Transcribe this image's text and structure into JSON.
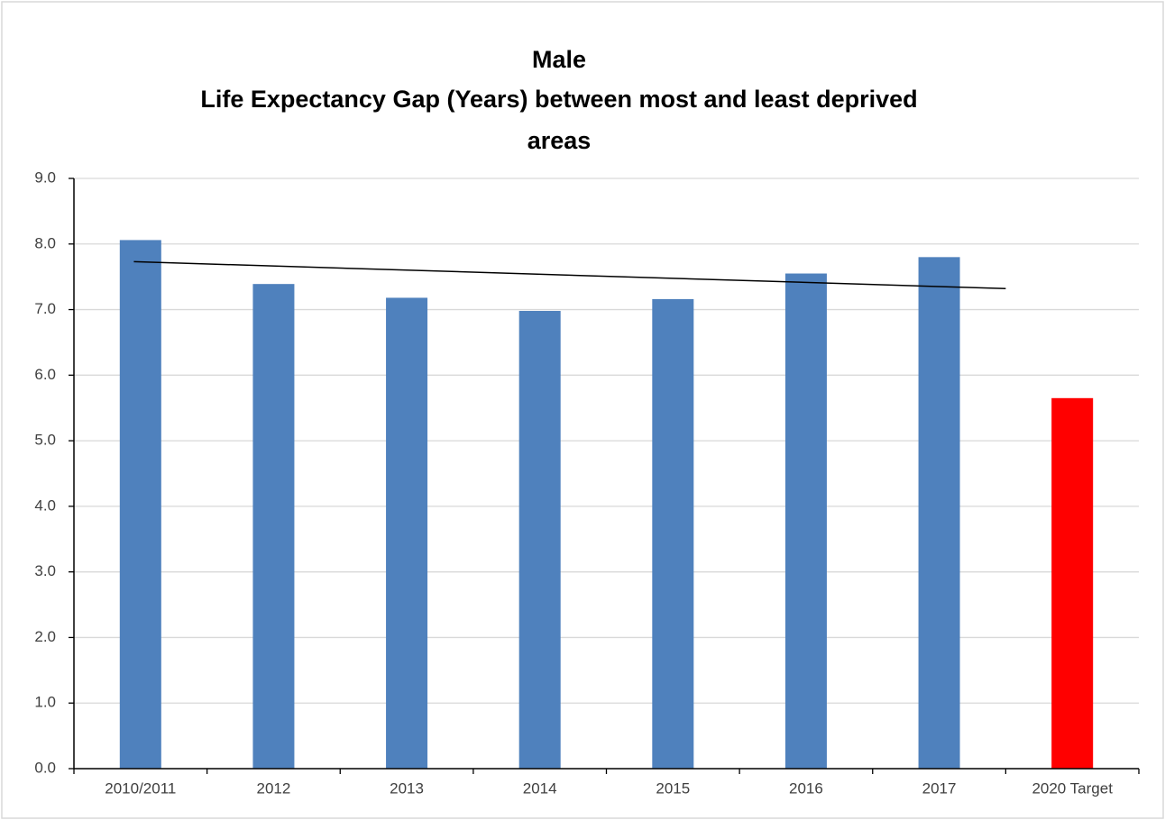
{
  "chart_data": {
    "type": "bar",
    "title": [
      "Male",
      "Life Expectancy Gap (Years) between most and least deprived",
      "areas"
    ],
    "categories": [
      "2010/2011",
      "2012",
      "2013",
      "2014",
      "2015",
      "2016",
      "2017",
      "2020 Target"
    ],
    "values": [
      8.06,
      7.39,
      7.18,
      6.98,
      7.16,
      7.55,
      7.8,
      5.65
    ],
    "colors": [
      "#4f81bd",
      "#4f81bd",
      "#4f81bd",
      "#4f81bd",
      "#4f81bd",
      "#4f81bd",
      "#4f81bd",
      "#ff0000"
    ],
    "trendline": {
      "values": [
        7.73,
        7.32
      ],
      "color": "#000000"
    },
    "ylim": [
      0,
      9
    ],
    "yticks": [
      {
        "value": 0,
        "label": "0.0"
      },
      {
        "value": 1,
        "label": "1.0"
      },
      {
        "value": 2,
        "label": "2.0"
      },
      {
        "value": 3,
        "label": "3.0"
      },
      {
        "value": 4,
        "label": "4.0"
      },
      {
        "value": 5,
        "label": "5.0"
      },
      {
        "value": 6,
        "label": "6.0"
      },
      {
        "value": 7,
        "label": "7.0"
      },
      {
        "value": 8,
        "label": "8.0"
      },
      {
        "value": 9,
        "label": "9.0"
      }
    ],
    "grid": true
  }
}
